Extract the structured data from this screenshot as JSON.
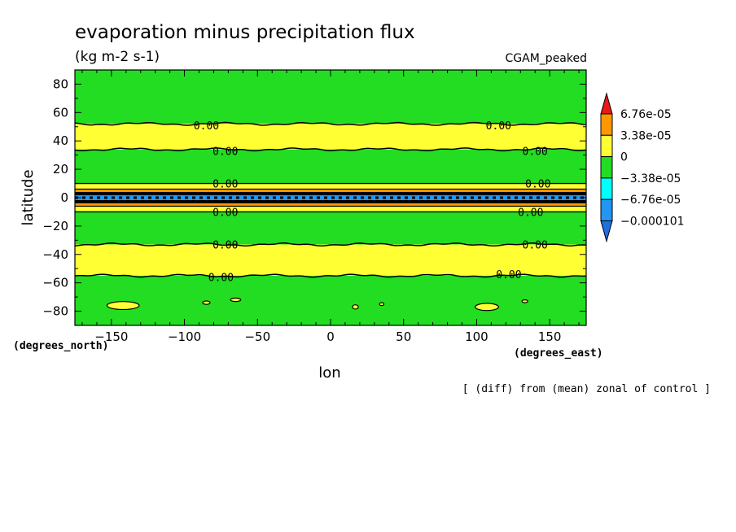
{
  "chart_data": {
    "type": "heatmap",
    "title": "evaporation minus precipitation flux",
    "units": "(kg m-2 s-1)",
    "label_top_right": "CGAM_peaked",
    "xlabel": "lon",
    "ylabel": "latitude",
    "x_units": "(degrees_east)",
    "y_units": "(degrees_north)",
    "footnote": "[ (diff) from (mean) zonal of control ]",
    "xlim": [
      -175,
      175
    ],
    "ylim": [
      -90,
      90
    ],
    "x_ticks": [
      {
        "value": -150,
        "label": "−150"
      },
      {
        "value": -100,
        "label": "−100"
      },
      {
        "value": -50,
        "label": "−50"
      },
      {
        "value": 0,
        "label": "0"
      },
      {
        "value": 50,
        "label": "50"
      },
      {
        "value": 100,
        "label": "100"
      },
      {
        "value": 150,
        "label": "150"
      }
    ],
    "y_ticks": [
      {
        "value": 80,
        "label": "80"
      },
      {
        "value": 60,
        "label": "60"
      },
      {
        "value": 40,
        "label": "40"
      },
      {
        "value": 20,
        "label": "20"
      },
      {
        "value": 0,
        "label": "0"
      },
      {
        "value": -20,
        "label": "−20"
      },
      {
        "value": -40,
        "label": "−40"
      },
      {
        "value": -60,
        "label": "−60"
      },
      {
        "value": -80,
        "label": "−80"
      }
    ],
    "colorbar": {
      "levels": [
        {
          "value": 6.76e-05,
          "label": "6.76e-05"
        },
        {
          "value": 3.38e-05,
          "label": "3.38e-05"
        },
        {
          "value": 0,
          "label": "0"
        },
        {
          "value": -3.38e-05,
          "label": "−3.38e-05"
        },
        {
          "value": -6.76e-05,
          "label": "−6.76e-05"
        },
        {
          "value": -0.000101,
          "label": "−0.000101"
        }
      ],
      "colors_top_to_bottom": [
        "#e81818",
        "#ff9800",
        "#ffff33",
        "#22dd22",
        "#00ffff",
        "#2196f3",
        "#1e6fe0"
      ]
    },
    "bands": [
      {
        "lat_top": 90,
        "lat_bottom": 52,
        "color": "#22dd22"
      },
      {
        "lat_top": 52,
        "lat_bottom": 34,
        "color": "#ffff33"
      },
      {
        "lat_top": 34,
        "lat_bottom": 10,
        "color": "#22dd22"
      },
      {
        "lat_top": 10,
        "lat_bottom": 6,
        "color": "#ffff33"
      },
      {
        "lat_top": 6,
        "lat_bottom": 4,
        "color": "#ff9800"
      },
      {
        "lat_top": 4,
        "lat_bottom": -4,
        "color": "#000000"
      },
      {
        "lat_top": -4,
        "lat_bottom": -6,
        "color": "#ff9800"
      },
      {
        "lat_top": -6,
        "lat_bottom": -10,
        "color": "#ffff33"
      },
      {
        "lat_top": -10,
        "lat_bottom": -33,
        "color": "#22dd22"
      },
      {
        "lat_top": -33,
        "lat_bottom": -55,
        "color": "#ffff33"
      },
      {
        "lat_top": -55,
        "lat_bottom": -90,
        "color": "#22dd22"
      }
    ],
    "contour_lines": [
      {
        "lat": 52,
        "level": "0.00"
      },
      {
        "lat": 34,
        "level": "0.00"
      },
      {
        "lat": -33,
        "level": "0.00"
      },
      {
        "lat": -55,
        "level": "0.00"
      }
    ],
    "contour_labels": [
      {
        "lon": -85,
        "lat": 51,
        "text": "0.00"
      },
      {
        "lon": 115,
        "lat": 51,
        "text": "0.00"
      },
      {
        "lon": -72,
        "lat": 33,
        "text": "0.00"
      },
      {
        "lon": 140,
        "lat": 33,
        "text": "0.00"
      },
      {
        "lon": -72,
        "lat": 10,
        "text": "0.00"
      },
      {
        "lon": 142,
        "lat": 10,
        "text": "0.00"
      },
      {
        "lon": -72,
        "lat": -10,
        "text": "0.00"
      },
      {
        "lon": 137,
        "lat": -10,
        "text": "0.00"
      },
      {
        "lon": -72,
        "lat": -33,
        "text": "0.00"
      },
      {
        "lon": 140,
        "lat": -33,
        "text": "0.00"
      },
      {
        "lon": -75,
        "lat": -56,
        "text": "0.00"
      },
      {
        "lon": 122,
        "lat": -54,
        "text": "0.00"
      }
    ],
    "equatorial_strip": {
      "lat": 0,
      "lon_start": -175,
      "lon_end": 175,
      "color": "#2196f3"
    },
    "yellow_patches": [
      {
        "lon": -142,
        "lat": -76,
        "dlon": 11,
        "dlat": 2.8
      },
      {
        "lon": -85,
        "lat": -74,
        "dlon": 2.5,
        "dlat": 1.2
      },
      {
        "lon": -65,
        "lat": -72,
        "dlon": 3.5,
        "dlat": 1.2
      },
      {
        "lon": 17,
        "lat": -77,
        "dlon": 2,
        "dlat": 1.5
      },
      {
        "lon": 35,
        "lat": -75,
        "dlon": 1.5,
        "dlat": 1
      },
      {
        "lon": 107,
        "lat": -77,
        "dlon": 8,
        "dlat": 2.5
      },
      {
        "lon": 133,
        "lat": -73,
        "dlon": 2,
        "dlat": 1
      }
    ]
  }
}
